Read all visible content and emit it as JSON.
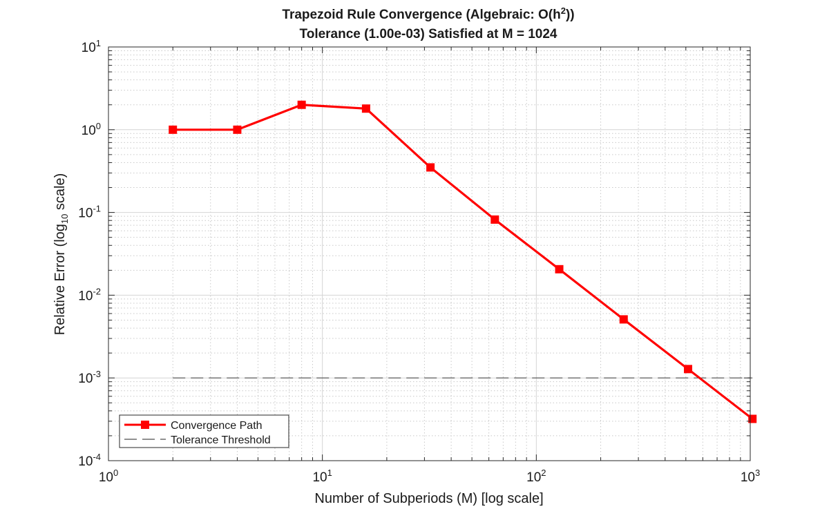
{
  "chart_data": {
    "type": "line",
    "title_line1_prefix": "Trapezoid  Rule  Convergence  (Algebraic:  O(h",
    "title_line1_sup": "2",
    "title_line1_suffix": "))",
    "title_line2": "Tolerance  (1.00e-03)  Satisfied  at  M  =  1024",
    "xlabel": "Number of Subperiods (M) [log scale]",
    "ylabel_prefix": "Relative  Error  (log",
    "ylabel_sub": "10",
    "ylabel_suffix": "  scale)",
    "xscale": "log",
    "yscale": "log",
    "xlim": [
      1,
      1000
    ],
    "ylim": [
      0.0001,
      10
    ],
    "grid": true,
    "minor_grid": true,
    "x_ticks": [
      {
        "value": 1,
        "base": "10",
        "exp": "0"
      },
      {
        "value": 10,
        "base": "10",
        "exp": "1"
      },
      {
        "value": 100,
        "base": "10",
        "exp": "2"
      },
      {
        "value": 1000,
        "base": "10",
        "exp": "3"
      }
    ],
    "y_ticks": [
      {
        "value": 0.0001,
        "base": "10",
        "exp": "-4"
      },
      {
        "value": 0.001,
        "base": "10",
        "exp": "-3"
      },
      {
        "value": 0.01,
        "base": "10",
        "exp": "-2"
      },
      {
        "value": 0.1,
        "base": "10",
        "exp": "-1"
      },
      {
        "value": 1,
        "base": "10",
        "exp": "0"
      },
      {
        "value": 10,
        "base": "10",
        "exp": "1"
      }
    ],
    "series": [
      {
        "name": "Convergence Path",
        "color": "#ff0000",
        "marker": "square",
        "style": "solid",
        "x": [
          2,
          4,
          8,
          16,
          32,
          64,
          128,
          256,
          512,
          1024
        ],
        "y": [
          1.0,
          1.0,
          2.0,
          1.8,
          0.35,
          0.082,
          0.0206,
          0.0051,
          0.00128,
          0.00032
        ]
      },
      {
        "name": "Tolerance Threshold",
        "color": "#4d4d4d",
        "marker": "none",
        "style": "dashed",
        "x": [
          2,
          1024
        ],
        "y": [
          0.001,
          0.001
        ]
      }
    ],
    "legend_position": "bottom-left"
  }
}
